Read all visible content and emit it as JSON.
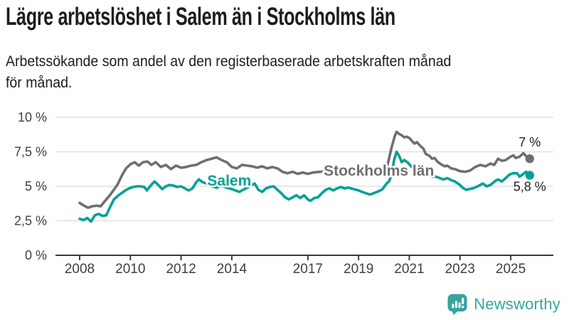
{
  "header": {
    "title": "Lägre arbetslöshet i Salem än i Stockholms län",
    "subtitle_lines": [
      "Arbetssökande som andel av den registerbaserade arbetskraften månad",
      "för månad."
    ]
  },
  "chart_data": {
    "type": "line",
    "title": "Lägre arbetslöshet i Salem än i Stockholms län",
    "subtitle": "Arbetssökande som andel av den registerbaserade arbetskraften månad för månad.",
    "grid": "horizontal",
    "legend_position": "inline-labels",
    "x_axis": {
      "range": [
        2007.05,
        2026.65
      ],
      "ticks": [
        {
          "value": 2008,
          "label": "2008"
        },
        {
          "value": 2010,
          "label": "2010"
        },
        {
          "value": 2012,
          "label": "2012"
        },
        {
          "value": 2014,
          "label": "2014"
        },
        {
          "value": 2017,
          "label": "2017"
        },
        {
          "value": 2019,
          "label": "2019"
        },
        {
          "value": 2021,
          "label": "2021"
        },
        {
          "value": 2023,
          "label": "2023"
        },
        {
          "value": 2025,
          "label": "2025"
        }
      ]
    },
    "y_axis": {
      "range": [
        0,
        10
      ],
      "unit": "%",
      "ticks": [
        {
          "value": 0,
          "label": "0 %"
        },
        {
          "value": 2.5,
          "label": "2,5 %"
        },
        {
          "value": 5,
          "label": "5 %"
        },
        {
          "value": 7.5,
          "label": "7,5 %"
        },
        {
          "value": 10,
          "label": "10 %"
        }
      ]
    },
    "series": [
      {
        "name": "Stockholms län",
        "color": "#6f6f6f",
        "end_label": "7 %",
        "end_value": 7.0,
        "end_label_position": "above",
        "label_anchor": {
          "year": 2019.8,
          "value": 6.13
        },
        "points": [
          [
            2008.0,
            3.8
          ],
          [
            2008.17,
            3.6
          ],
          [
            2008.33,
            3.45
          ],
          [
            2008.5,
            3.55
          ],
          [
            2008.67,
            3.6
          ],
          [
            2008.83,
            3.55
          ],
          [
            2009.0,
            3.95
          ],
          [
            2009.17,
            4.3
          ],
          [
            2009.33,
            4.7
          ],
          [
            2009.5,
            5.15
          ],
          [
            2009.67,
            5.8
          ],
          [
            2009.83,
            6.3
          ],
          [
            2010.0,
            6.6
          ],
          [
            2010.17,
            6.75
          ],
          [
            2010.33,
            6.5
          ],
          [
            2010.5,
            6.75
          ],
          [
            2010.67,
            6.8
          ],
          [
            2010.83,
            6.55
          ],
          [
            2011.0,
            6.75
          ],
          [
            2011.2,
            6.4
          ],
          [
            2011.4,
            6.55
          ],
          [
            2011.6,
            6.25
          ],
          [
            2011.8,
            6.5
          ],
          [
            2012.0,
            6.35
          ],
          [
            2012.2,
            6.4
          ],
          [
            2012.4,
            6.5
          ],
          [
            2012.6,
            6.55
          ],
          [
            2012.8,
            6.75
          ],
          [
            2013.0,
            6.9
          ],
          [
            2013.2,
            7.0
          ],
          [
            2013.4,
            7.1
          ],
          [
            2013.6,
            6.9
          ],
          [
            2013.8,
            6.75
          ],
          [
            2014.0,
            6.4
          ],
          [
            2014.2,
            6.3
          ],
          [
            2014.4,
            6.55
          ],
          [
            2014.6,
            6.5
          ],
          [
            2014.8,
            6.45
          ],
          [
            2015.0,
            6.35
          ],
          [
            2015.2,
            6.45
          ],
          [
            2015.4,
            6.3
          ],
          [
            2015.6,
            6.4
          ],
          [
            2015.8,
            6.3
          ],
          [
            2016.0,
            6.05
          ],
          [
            2016.2,
            5.95
          ],
          [
            2016.4,
            6.05
          ],
          [
            2016.6,
            5.9
          ],
          [
            2016.8,
            6.0
          ],
          [
            2017.0,
            5.9
          ],
          [
            2017.2,
            6.0
          ],
          [
            2017.5,
            6.05
          ],
          [
            2017.8,
            6.1
          ],
          [
            2018.0,
            6.1
          ],
          [
            2018.3,
            6.05
          ],
          [
            2018.6,
            6.1
          ],
          [
            2019.0,
            6.0
          ],
          [
            2019.3,
            6.05
          ],
          [
            2019.6,
            6.05
          ],
          [
            2019.9,
            6.1
          ],
          [
            2020.1,
            6.25
          ],
          [
            2020.2,
            7.0
          ],
          [
            2020.3,
            7.8
          ],
          [
            2020.42,
            8.6
          ],
          [
            2020.5,
            8.95
          ],
          [
            2020.6,
            8.8
          ],
          [
            2020.7,
            8.7
          ],
          [
            2020.8,
            8.55
          ],
          [
            2020.9,
            8.6
          ],
          [
            2021.0,
            8.5
          ],
          [
            2021.1,
            8.3
          ],
          [
            2021.2,
            8.1
          ],
          [
            2021.3,
            8.2
          ],
          [
            2021.45,
            7.9
          ],
          [
            2021.55,
            7.75
          ],
          [
            2021.65,
            7.35
          ],
          [
            2021.8,
            7.2
          ],
          [
            2021.9,
            7.0
          ],
          [
            2022.0,
            7.05
          ],
          [
            2022.1,
            6.8
          ],
          [
            2022.25,
            6.6
          ],
          [
            2022.4,
            6.45
          ],
          [
            2022.5,
            6.5
          ],
          [
            2022.65,
            6.3
          ],
          [
            2022.8,
            6.25
          ],
          [
            2023.0,
            6.1
          ],
          [
            2023.2,
            6.05
          ],
          [
            2023.4,
            6.15
          ],
          [
            2023.6,
            6.4
          ],
          [
            2023.8,
            6.55
          ],
          [
            2024.0,
            6.45
          ],
          [
            2024.2,
            6.65
          ],
          [
            2024.35,
            6.55
          ],
          [
            2024.5,
            7.0
          ],
          [
            2024.65,
            6.85
          ],
          [
            2024.8,
            6.9
          ],
          [
            2024.95,
            7.1
          ],
          [
            2025.1,
            7.25
          ],
          [
            2025.2,
            7.05
          ],
          [
            2025.35,
            7.15
          ],
          [
            2025.5,
            7.4
          ],
          [
            2025.6,
            7.2
          ],
          [
            2025.75,
            7.0
          ]
        ]
      },
      {
        "name": "Salem",
        "color": "#00a196",
        "end_label": "5,8 %",
        "end_value": 5.8,
        "end_label_position": "below",
        "label_anchor": {
          "year": 2013.9,
          "value": 5.41
        },
        "points": [
          [
            2008.0,
            2.65
          ],
          [
            2008.15,
            2.55
          ],
          [
            2008.3,
            2.7
          ],
          [
            2008.45,
            2.45
          ],
          [
            2008.6,
            2.9
          ],
          [
            2008.75,
            3.0
          ],
          [
            2008.9,
            2.85
          ],
          [
            2009.05,
            2.9
          ],
          [
            2009.2,
            3.5
          ],
          [
            2009.35,
            4.05
          ],
          [
            2009.5,
            4.3
          ],
          [
            2009.65,
            4.5
          ],
          [
            2009.8,
            4.7
          ],
          [
            2009.95,
            4.85
          ],
          [
            2010.1,
            4.95
          ],
          [
            2010.25,
            5.0
          ],
          [
            2010.4,
            5.0
          ],
          [
            2010.55,
            4.95
          ],
          [
            2010.65,
            4.7
          ],
          [
            2010.8,
            5.05
          ],
          [
            2010.95,
            5.35
          ],
          [
            2011.1,
            5.1
          ],
          [
            2011.25,
            4.8
          ],
          [
            2011.4,
            5.0
          ],
          [
            2011.55,
            5.1
          ],
          [
            2011.7,
            5.05
          ],
          [
            2011.85,
            4.95
          ],
          [
            2012.0,
            5.0
          ],
          [
            2012.15,
            4.85
          ],
          [
            2012.3,
            4.7
          ],
          [
            2012.45,
            4.85
          ],
          [
            2012.6,
            5.3
          ],
          [
            2012.7,
            5.5
          ],
          [
            2012.85,
            5.3
          ],
          [
            2013.0,
            5.2
          ],
          [
            2013.2,
            5.0
          ],
          [
            2013.4,
            4.9
          ],
          [
            2013.6,
            5.05
          ],
          [
            2013.8,
            4.9
          ],
          [
            2014.0,
            4.8
          ],
          [
            2014.3,
            4.6
          ],
          [
            2014.5,
            4.8
          ],
          [
            2014.7,
            5.0
          ],
          [
            2014.9,
            5.2
          ],
          [
            2015.05,
            4.75
          ],
          [
            2015.2,
            4.6
          ],
          [
            2015.35,
            4.85
          ],
          [
            2015.5,
            4.95
          ],
          [
            2015.65,
            5.0
          ],
          [
            2015.8,
            4.75
          ],
          [
            2015.95,
            4.5
          ],
          [
            2016.1,
            4.2
          ],
          [
            2016.25,
            4.05
          ],
          [
            2016.4,
            4.2
          ],
          [
            2016.55,
            4.35
          ],
          [
            2016.7,
            4.15
          ],
          [
            2016.85,
            4.35
          ],
          [
            2017.0,
            4.05
          ],
          [
            2017.1,
            3.95
          ],
          [
            2017.25,
            4.15
          ],
          [
            2017.4,
            4.2
          ],
          [
            2017.55,
            4.5
          ],
          [
            2017.7,
            4.75
          ],
          [
            2017.85,
            4.85
          ],
          [
            2018.0,
            4.7
          ],
          [
            2018.15,
            4.85
          ],
          [
            2018.3,
            4.95
          ],
          [
            2018.45,
            4.85
          ],
          [
            2018.6,
            4.9
          ],
          [
            2018.8,
            4.8
          ],
          [
            2019.0,
            4.7
          ],
          [
            2019.2,
            4.55
          ],
          [
            2019.45,
            4.4
          ],
          [
            2019.6,
            4.5
          ],
          [
            2019.8,
            4.65
          ],
          [
            2019.95,
            4.8
          ],
          [
            2020.1,
            5.2
          ],
          [
            2020.2,
            5.35
          ],
          [
            2020.3,
            5.8
          ],
          [
            2020.4,
            6.9
          ],
          [
            2020.5,
            7.5
          ],
          [
            2020.6,
            7.2
          ],
          [
            2020.7,
            6.75
          ],
          [
            2020.8,
            6.9
          ],
          [
            2020.95,
            6.7
          ],
          [
            2021.1,
            6.4
          ],
          [
            2021.3,
            6.1
          ],
          [
            2021.5,
            5.95
          ],
          [
            2021.7,
            5.85
          ],
          [
            2021.9,
            5.7
          ],
          [
            2022.05,
            5.7
          ],
          [
            2022.2,
            5.6
          ],
          [
            2022.35,
            5.5
          ],
          [
            2022.5,
            5.6
          ],
          [
            2022.65,
            5.45
          ],
          [
            2022.8,
            5.35
          ],
          [
            2023.0,
            5.1
          ],
          [
            2023.1,
            4.9
          ],
          [
            2023.25,
            4.75
          ],
          [
            2023.5,
            4.85
          ],
          [
            2023.7,
            5.0
          ],
          [
            2023.9,
            5.2
          ],
          [
            2024.05,
            5.0
          ],
          [
            2024.2,
            5.1
          ],
          [
            2024.4,
            5.4
          ],
          [
            2024.5,
            5.5
          ],
          [
            2024.65,
            5.35
          ],
          [
            2024.8,
            5.6
          ],
          [
            2024.95,
            5.85
          ],
          [
            2025.1,
            5.95
          ],
          [
            2025.25,
            5.95
          ],
          [
            2025.35,
            5.7
          ],
          [
            2025.5,
            5.9
          ],
          [
            2025.6,
            6.05
          ],
          [
            2025.75,
            5.8
          ]
        ]
      }
    ]
  },
  "branding": {
    "logo_text": "Newsworthy",
    "color": "#38a3a0"
  },
  "colors": {
    "title": "#1d1d1b",
    "axis_text": "#3f3f3e",
    "gridline": "#e0e0e0",
    "baseline": "#3c3c3b"
  }
}
